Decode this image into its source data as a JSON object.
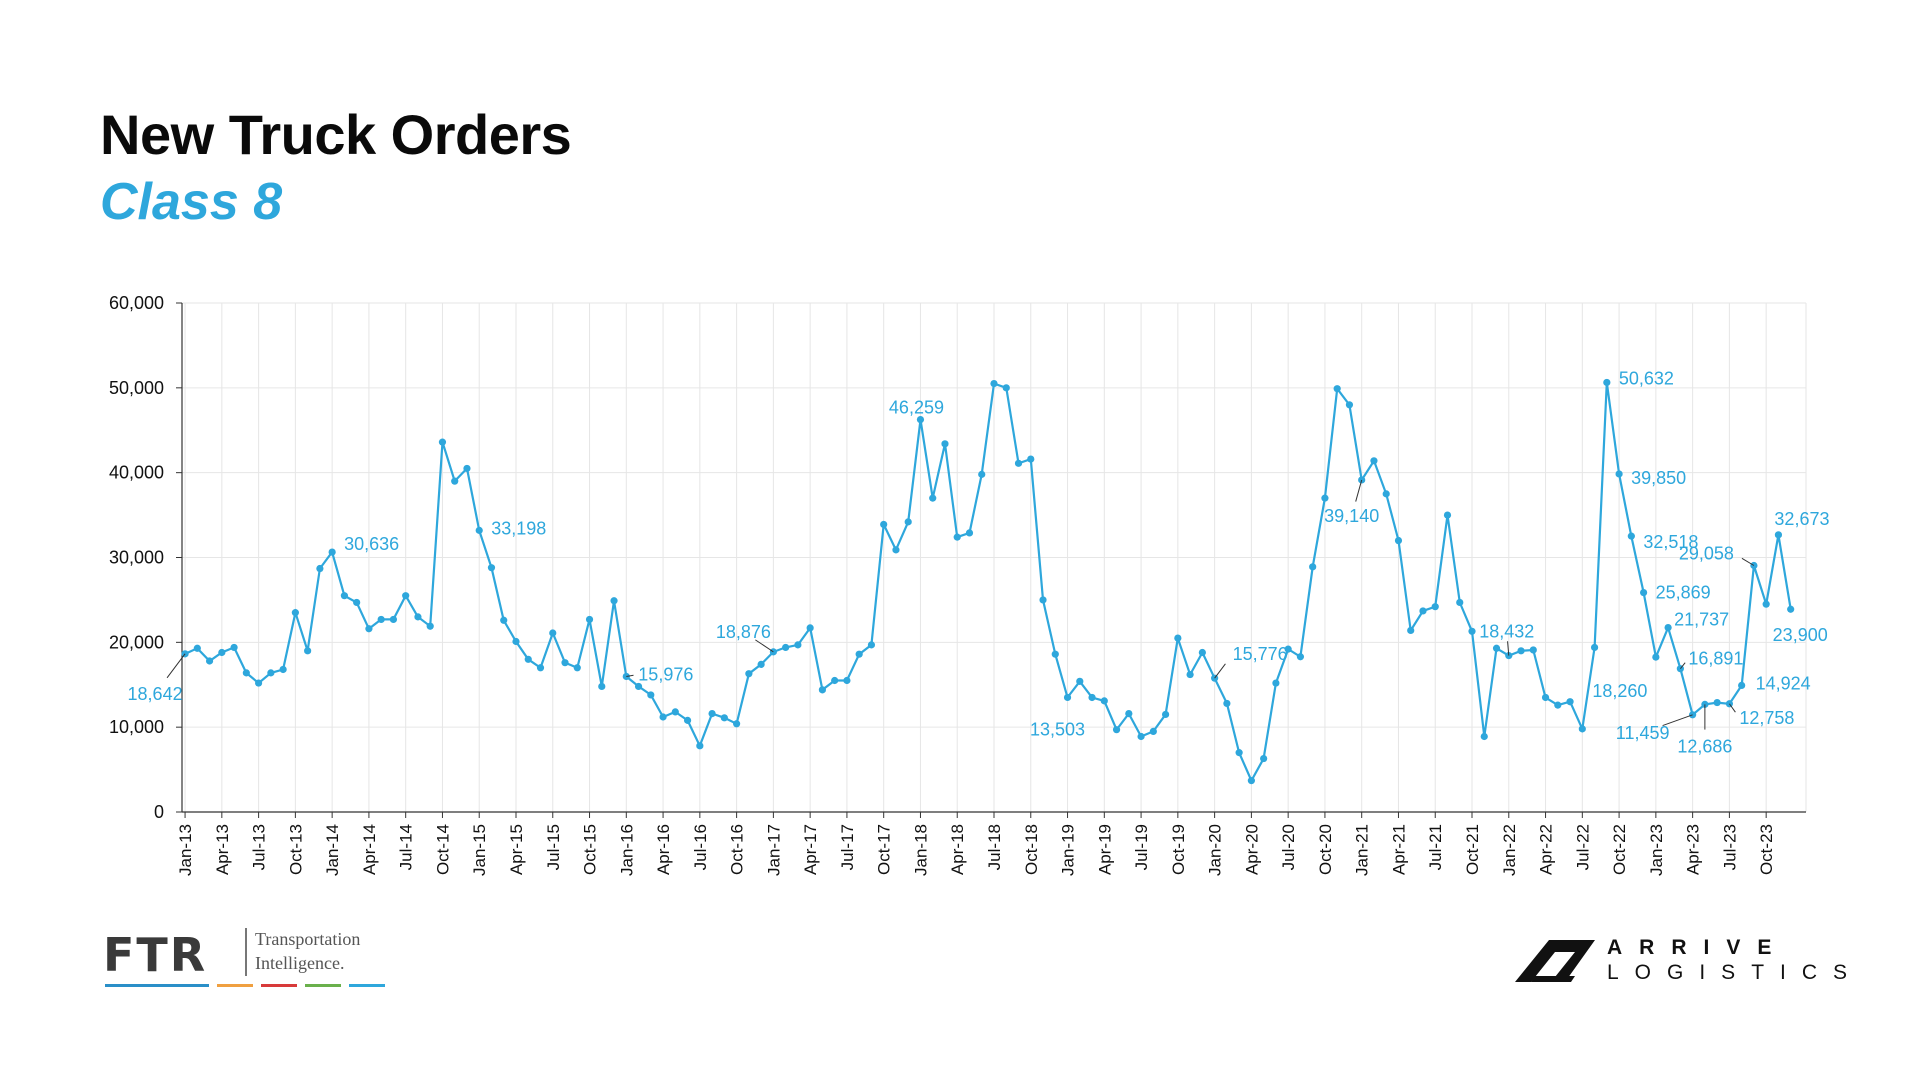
{
  "header": {
    "title": "New Truck Orders",
    "subtitle": "Class 8"
  },
  "colors": {
    "line": "#2ea7dc",
    "label": "#2ea7dc",
    "grid": "#e6e6e6",
    "axis": "#333333"
  },
  "logos": {
    "ftr": {
      "mark": "FTR",
      "line1": "Transportation",
      "line2": "Intelligence."
    },
    "arrive": {
      "line1": "ARRIVE",
      "line2": "LOGISTICS"
    }
  },
  "chart_data": {
    "type": "line",
    "ylim": [
      0,
      60000
    ],
    "yticks": [
      "0",
      "10,000",
      "20,000",
      "30,000",
      "40,000",
      "50,000",
      "60,000"
    ],
    "ytick_values": [
      0,
      10000,
      20000,
      30000,
      40000,
      50000,
      60000
    ],
    "xtick_labels": [
      "Jan-13",
      "Apr-13",
      "Jul-13",
      "Oct-13",
      "Jan-14",
      "Apr-14",
      "Jul-14",
      "Oct-14",
      "Jan-15",
      "Apr-15",
      "Jul-15",
      "Oct-15",
      "Jan-16",
      "Apr-16",
      "Jul-16",
      "Oct-16",
      "Jan-17",
      "Apr-17",
      "Jul-17",
      "Oct-17",
      "Jan-18",
      "Apr-18",
      "Jul-18",
      "Oct-18",
      "Jan-19",
      "Apr-19",
      "Jul-19",
      "Oct-19",
      "Jan-20",
      "Apr-20",
      "Jul-20",
      "Oct-20",
      "Jan-21",
      "Apr-21",
      "Jul-21",
      "Oct-21",
      "Jan-22",
      "Apr-22",
      "Jul-22",
      "Oct-22",
      "Jan-23",
      "Apr-23",
      "Jul-23",
      "Oct-23"
    ],
    "grid": true,
    "values": [
      18642,
      19300,
      17800,
      18800,
      19400,
      16400,
      15200,
      16400,
      16800,
      23500,
      19000,
      28700,
      30636,
      25500,
      24700,
      21600,
      22700,
      22700,
      25500,
      23000,
      21900,
      43600,
      39000,
      40500,
      33198,
      28800,
      22600,
      20100,
      18000,
      17000,
      21100,
      17600,
      17000,
      22700,
      14800,
      24900,
      15976,
      14800,
      13800,
      11200,
      11800,
      10800,
      7800,
      11600,
      11100,
      10400,
      16300,
      17400,
      18876,
      19400,
      19700,
      21700,
      14400,
      15500,
      15500,
      18600,
      19700,
      33900,
      30900,
      34200,
      46259,
      37000,
      43400,
      32400,
      32900,
      39800,
      50500,
      50000,
      41100,
      41600,
      25000,
      18600,
      13503,
      15400,
      13500,
      13100,
      9700,
      11600,
      8900,
      9500,
      11500,
      20500,
      16200,
      18800,
      15776,
      12800,
      7000,
      3700,
      6300,
      15200,
      19200,
      18300,
      28900,
      37000,
      49900,
      48000,
      39140,
      41400,
      37500,
      32000,
      21400,
      23700,
      24200,
      35000,
      24700,
      21300,
      8900,
      19300,
      18432,
      19000,
      19100,
      13500,
      12600,
      13000,
      9800,
      19400,
      50632,
      39850,
      32518,
      25869,
      18260,
      21737,
      16891,
      11459,
      12686,
      12900,
      12758,
      14924,
      29058,
      24500,
      32673,
      23900
    ],
    "data_labels": [
      {
        "index": 0,
        "text": "18,642"
      },
      {
        "index": 12,
        "text": "30,636"
      },
      {
        "index": 24,
        "text": "33,198"
      },
      {
        "index": 36,
        "text": "15,976"
      },
      {
        "index": 48,
        "text": "18,876"
      },
      {
        "index": 60,
        "text": "46,259"
      },
      {
        "index": 72,
        "text": "13,503"
      },
      {
        "index": 84,
        "text": "15,776"
      },
      {
        "index": 96,
        "text": "39,140"
      },
      {
        "index": 108,
        "text": "18,432"
      },
      {
        "index": 116,
        "text": "50,632"
      },
      {
        "index": 117,
        "text": "39,850"
      },
      {
        "index": 118,
        "text": "32,518"
      },
      {
        "index": 119,
        "text": "25,869"
      },
      {
        "index": 120,
        "text": "18,260"
      },
      {
        "index": 121,
        "text": "21,737"
      },
      {
        "index": 122,
        "text": "16,891"
      },
      {
        "index": 123,
        "text": "11,459"
      },
      {
        "index": 124,
        "text": "12,686"
      },
      {
        "index": 126,
        "text": "12,758"
      },
      {
        "index": 127,
        "text": "14,924"
      },
      {
        "index": 128,
        "text": "29,058"
      },
      {
        "index": 130,
        "text": "32,673"
      },
      {
        "index": 131,
        "text": "23,900"
      }
    ]
  }
}
